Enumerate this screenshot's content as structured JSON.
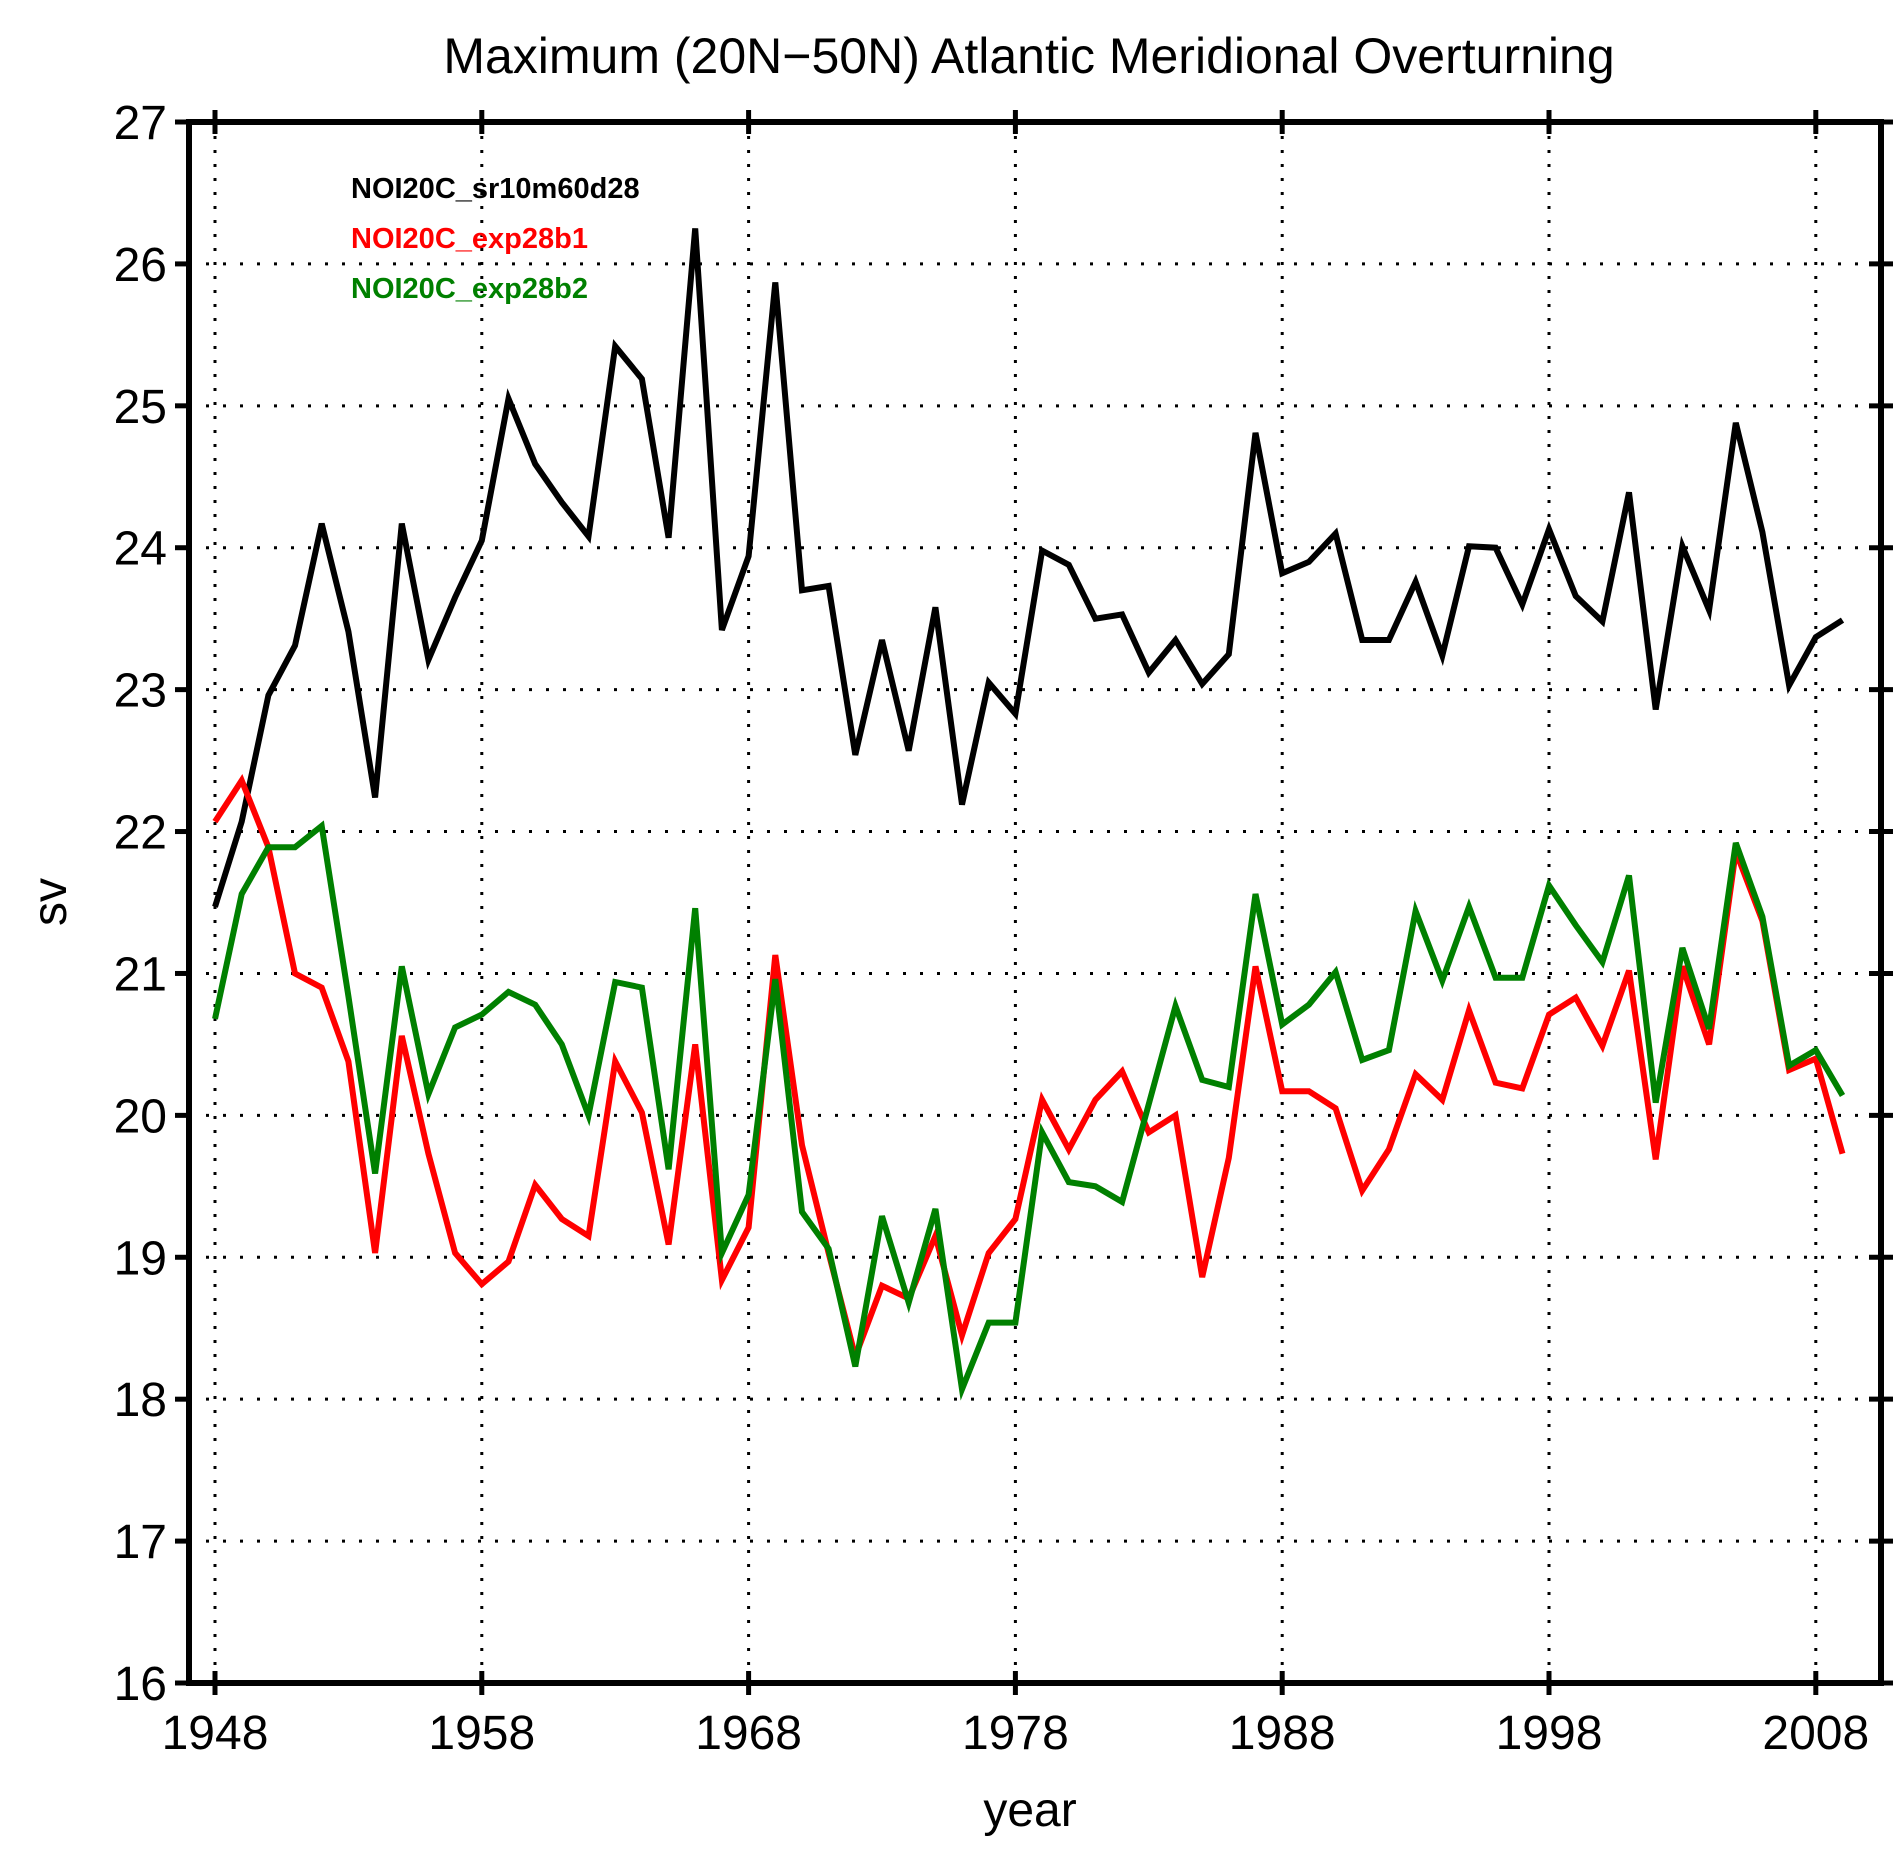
{
  "chart_data": {
    "type": "line",
    "title": "Maximum (20N−50N) Atlantic Meridional Overturning",
    "xlabel": "year",
    "ylabel": "sv",
    "xlim": [
      1948,
      2009
    ],
    "ylim": [
      16,
      27
    ],
    "grid": true,
    "legend_placement": "top-left",
    "x_ticks": [
      1948,
      1958,
      1968,
      1978,
      1988,
      1998,
      2008
    ],
    "x_tick_labels": [
      "1948",
      "1958",
      "1968",
      "1978",
      "1988",
      "1998",
      "2008"
    ],
    "y_ticks": [
      16,
      17,
      18,
      19,
      20,
      21,
      22,
      23,
      24,
      25,
      26,
      27
    ],
    "y_tick_labels": [
      "16",
      "17",
      "18",
      "19",
      "20",
      "21",
      "22",
      "23",
      "24",
      "25",
      "26",
      "27"
    ],
    "x_start": 1948,
    "series": [
      {
        "name": "NOI20C_sr10m60d28",
        "color": "#000000",
        "values": [
          21.47,
          22.07,
          22.96,
          23.31,
          24.17,
          23.41,
          22.24,
          24.17,
          23.21,
          23.65,
          24.05,
          25.05,
          24.59,
          24.32,
          24.08,
          25.42,
          25.19,
          24.07,
          26.25,
          23.42,
          23.94,
          25.87,
          23.7,
          23.73,
          22.54,
          23.35,
          22.57,
          23.58,
          22.19,
          23.05,
          22.83,
          23.98,
          23.88,
          23.5,
          23.53,
          23.12,
          23.35,
          23.04,
          23.25,
          24.81,
          23.82,
          23.9,
          24.1,
          23.35,
          23.35,
          23.76,
          23.24,
          24.01,
          24.0,
          23.6,
          24.13,
          23.66,
          23.48,
          24.39,
          22.86,
          24.01,
          23.56,
          24.88,
          24.11,
          23.03,
          23.37,
          23.49
        ]
      },
      {
        "name": "NOI20C_exp28b1",
        "color": "#ff0000",
        "values": [
          22.07,
          22.36,
          21.89,
          21.0,
          20.9,
          20.38,
          19.03,
          20.56,
          19.73,
          19.03,
          18.81,
          18.97,
          19.51,
          19.27,
          19.15,
          20.38,
          20.02,
          19.09,
          20.5,
          18.84,
          19.21,
          21.13,
          19.79,
          19.03,
          18.3,
          18.8,
          18.71,
          19.15,
          18.45,
          19.03,
          19.27,
          20.11,
          19.76,
          20.11,
          20.31,
          19.88,
          20.0,
          18.86,
          19.7,
          21.05,
          20.17,
          20.17,
          20.05,
          19.47,
          19.76,
          20.29,
          20.11,
          20.74,
          20.23,
          20.19,
          20.71,
          20.83,
          20.49,
          21.02,
          19.69,
          21.05,
          20.5,
          21.86,
          21.37,
          20.32,
          20.4,
          19.73
        ]
      },
      {
        "name": "NOI20C_exp28b2",
        "color": "#008000",
        "values": [
          20.68,
          21.56,
          21.89,
          21.89,
          22.04,
          20.84,
          19.59,
          21.05,
          20.15,
          20.62,
          20.71,
          20.87,
          20.78,
          20.5,
          20.0,
          20.94,
          20.9,
          19.62,
          21.46,
          19.03,
          19.44,
          20.96,
          19.32,
          19.06,
          18.23,
          19.29,
          18.68,
          19.34,
          18.07,
          18.54,
          18.54,
          19.88,
          19.53,
          19.5,
          19.39,
          20.08,
          20.77,
          20.25,
          20.2,
          21.56,
          20.64,
          20.78,
          21.01,
          20.39,
          20.46,
          21.44,
          20.95,
          21.47,
          20.97,
          20.97,
          21.62,
          21.34,
          21.08,
          21.69,
          20.09,
          21.18,
          20.61,
          21.92,
          21.4,
          20.35,
          20.46,
          20.14
        ]
      }
    ]
  }
}
